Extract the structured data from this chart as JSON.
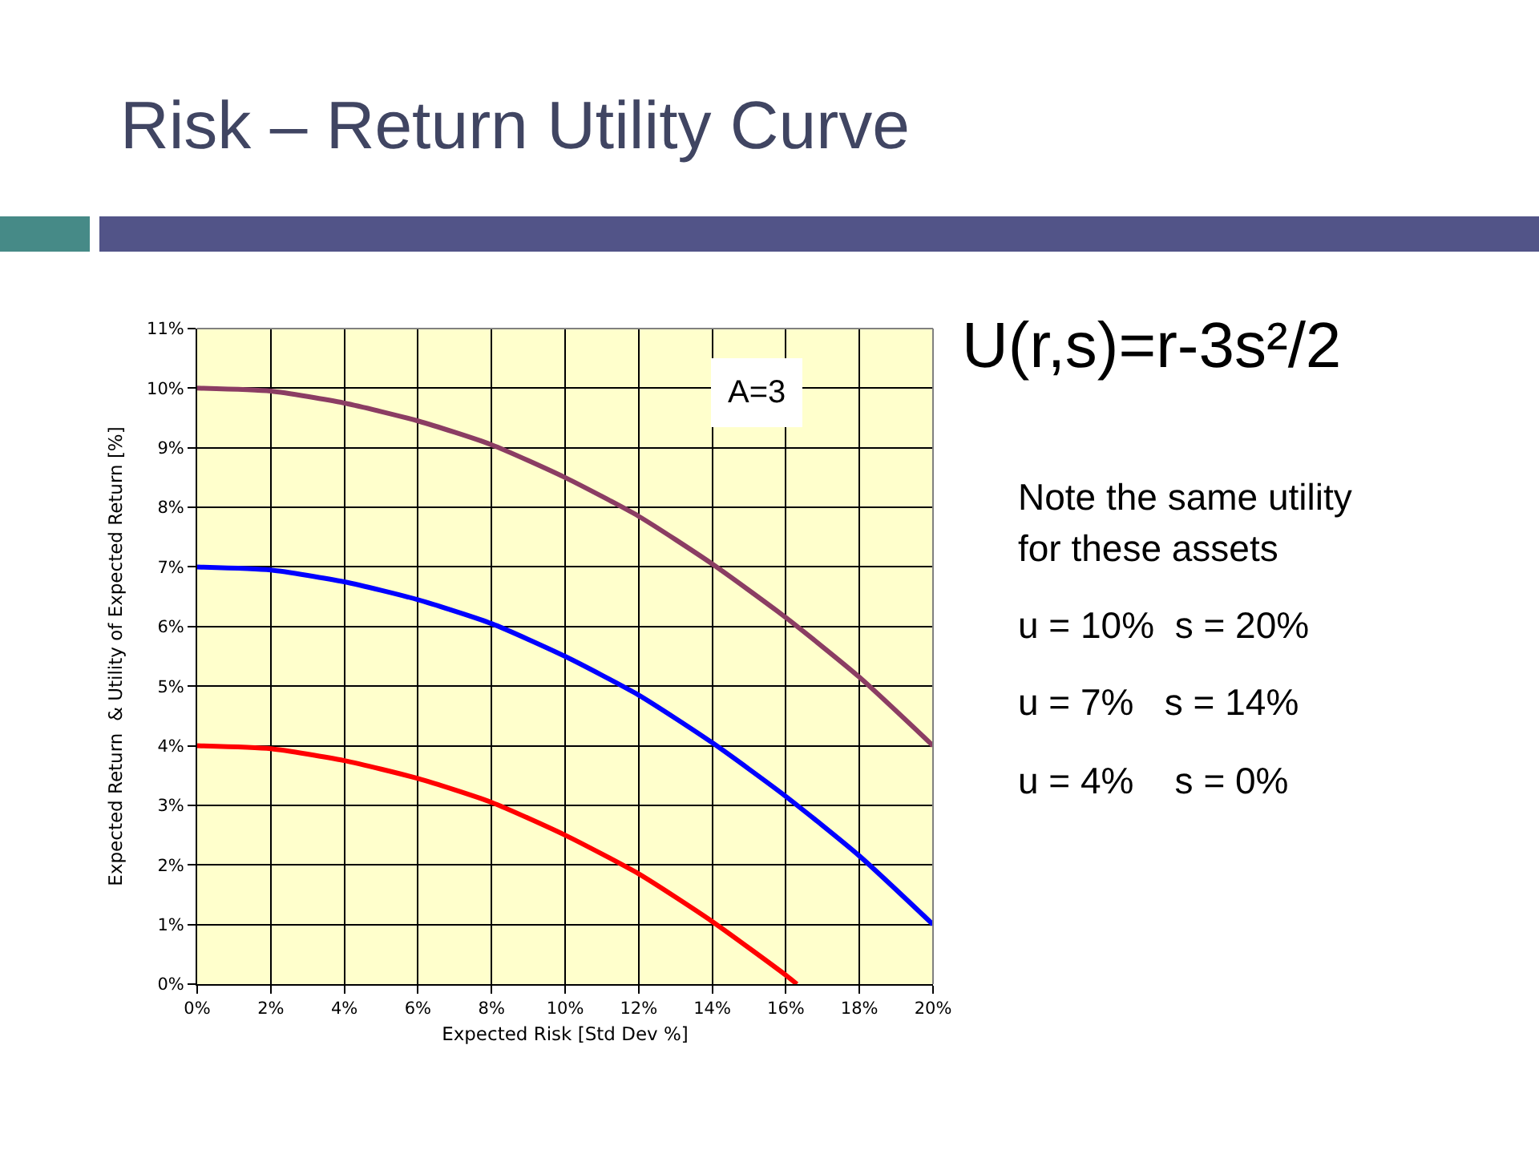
{
  "chart_data": {
    "type": "line",
    "title": "Risk – Return Utility Curve",
    "xlabel": "Expected Risk [Std Dev %]",
    "ylabel": "Expected Return  & Utility of Expected Return [%]",
    "x": [
      0,
      2,
      4,
      6,
      8,
      10,
      12,
      14,
      16,
      18,
      20
    ],
    "series": [
      {
        "color": "#8b3d63",
        "values": [
          10,
          9.95,
          9.75,
          9.45,
          9.05,
          8.5,
          7.85,
          7.05,
          6.15,
          5.15,
          4
        ]
      },
      {
        "color": "#0000ff",
        "values": [
          7,
          6.95,
          6.75,
          6.45,
          6.05,
          5.5,
          4.85,
          4.05,
          3.15,
          2.15,
          1
        ]
      },
      {
        "color": "#ff0000",
        "x": [
          0,
          2,
          4,
          6,
          8,
          10,
          12,
          14,
          16,
          16.3
        ],
        "values": [
          4,
          3.95,
          3.75,
          3.45,
          3.05,
          2.5,
          1.85,
          1.05,
          0.15,
          0
        ]
      }
    ],
    "xlim": [
      0,
      20
    ],
    "ylim": [
      0,
      11
    ],
    "xticks": [
      {
        "value": 0,
        "label": "0%"
      },
      {
        "value": 2,
        "label": "2%"
      },
      {
        "value": 4,
        "label": "4%"
      },
      {
        "value": 6,
        "label": "6%"
      },
      {
        "value": 8,
        "label": "8%"
      },
      {
        "value": 10,
        "label": "10%"
      },
      {
        "value": 12,
        "label": "12%"
      },
      {
        "value": 14,
        "label": "14%"
      },
      {
        "value": 16,
        "label": "16%"
      },
      {
        "value": 18,
        "label": "18%"
      },
      {
        "value": 20,
        "label": "20%"
      }
    ],
    "yticks": [
      {
        "value": 0,
        "label": "0%"
      },
      {
        "value": 1,
        "label": "1%"
      },
      {
        "value": 2,
        "label": "2%"
      },
      {
        "value": 3,
        "label": "3%"
      },
      {
        "value": 4,
        "label": "4%"
      },
      {
        "value": 5,
        "label": "5%"
      },
      {
        "value": 6,
        "label": "6%"
      },
      {
        "value": 7,
        "label": "7%"
      },
      {
        "value": 8,
        "label": "8%"
      },
      {
        "value": 9,
        "label": "9%"
      },
      {
        "value": 10,
        "label": "10%"
      },
      {
        "value": 11,
        "label": "11%"
      }
    ],
    "grid": true,
    "marker": "none",
    "line_style": "solid",
    "annotations": [
      "A=3",
      "U(r,s)=r-3s²/2",
      "Note the same utility for these assets",
      "u = 10%  s = 20%",
      "u = 7%   s = 14%",
      "u = 4%    s = 0%"
    ]
  }
}
